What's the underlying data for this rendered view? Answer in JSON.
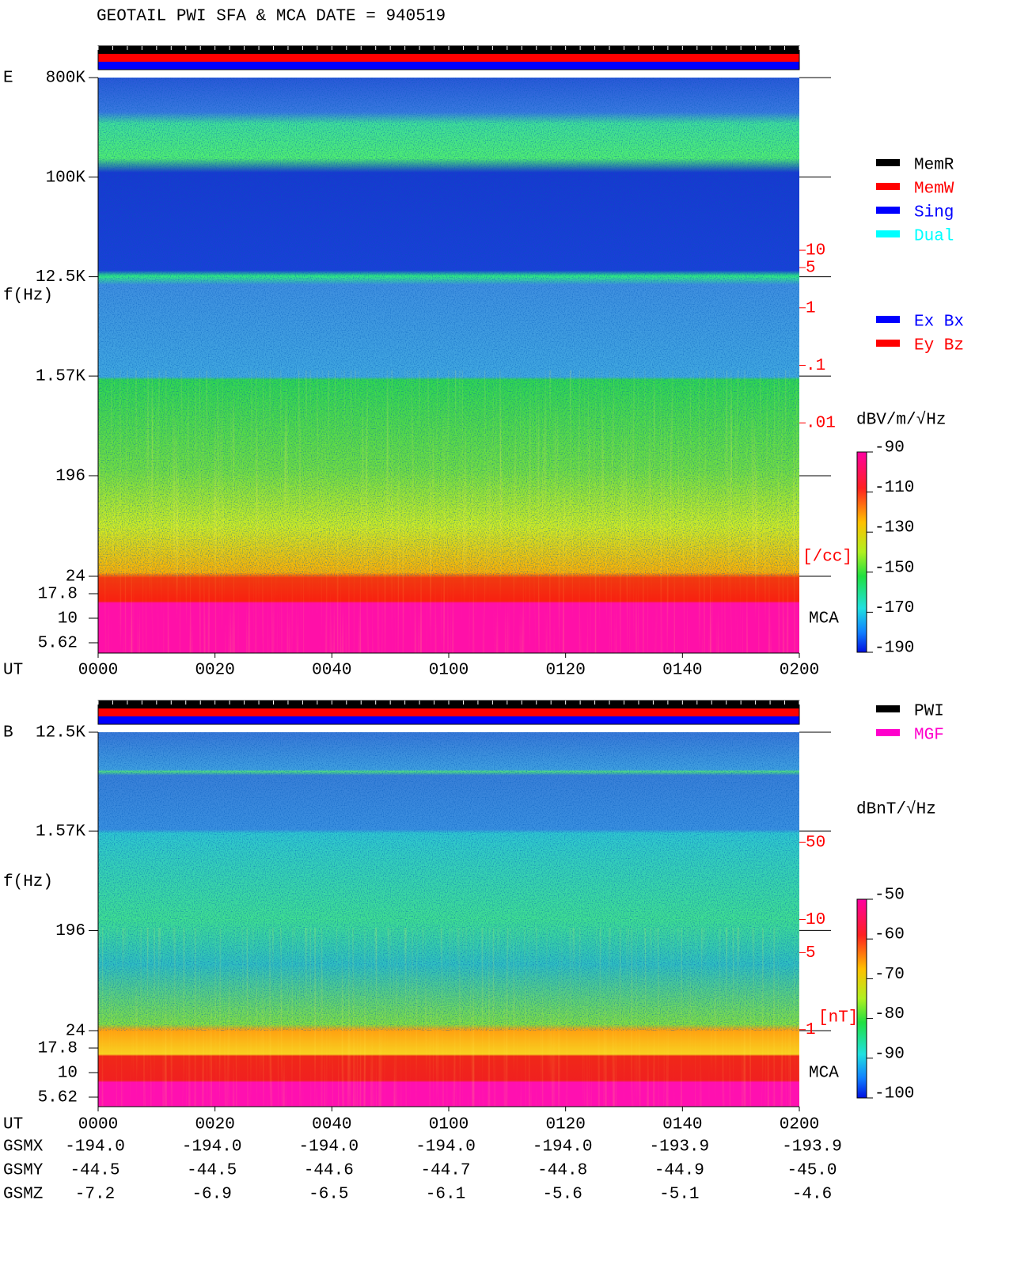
{
  "title": "GEOTAIL  PWI SFA & MCA   DATE = 940519",
  "chart_data": [
    {
      "type": "spectrogram",
      "component": "E",
      "y_label": "f(Hz)",
      "x_label": "UT",
      "xticks": [
        "0000",
        "0020",
        "0040",
        "0100",
        "0120",
        "0140",
        "0200"
      ],
      "ylim": [
        24,
        800000
      ],
      "yticks": [
        {
          "value": 800000,
          "label": "800K"
        },
        {
          "value": 100000,
          "label": "100K"
        },
        {
          "value": 12500,
          "label": "12.5K"
        },
        {
          "value": 1570,
          "label": "1.57K"
        },
        196,
        24
      ],
      "log_y": true,
      "mca_label": "MCA",
      "mca_yticks": [
        17.8,
        10,
        5.62
      ],
      "y2lim": [
        1e-06,
        10000
      ],
      "log_y2": true,
      "y2ticks": [
        10,
        5,
        1,
        {
          "value": 0.1,
          "label": ".1"
        },
        {
          "value": 0.01,
          "label": ".01"
        }
      ],
      "y2_label": "[/cc]",
      "colorbar_label": "dBV/m/√Hz",
      "clim": [
        -190,
        -90
      ],
      "cticks": [
        -90,
        -110,
        -130,
        -150,
        -170,
        -190
      ],
      "legend": [
        {
          "name": "MemR",
          "color": "#000000"
        },
        {
          "name": "MemW",
          "color": "#ff0000"
        },
        {
          "name": "Sing",
          "color": "#0000ff"
        },
        {
          "name": "Dual",
          "color": "#00ffff"
        }
      ],
      "legend2": [
        {
          "name": "Ex Bx",
          "color": "#0000ff"
        },
        {
          "name": "Ey Bz",
          "color": "#ff0000"
        }
      ]
    },
    {
      "type": "spectrogram",
      "component": "B",
      "y_label": "f(Hz)",
      "x_label": "UT",
      "xticks": [
        "0000",
        "0020",
        "0040",
        "0100",
        "0120",
        "0140",
        "0200"
      ],
      "ylim": [
        24,
        12500
      ],
      "yticks": [
        {
          "value": 12500,
          "label": "12.5K"
        },
        {
          "value": 1570,
          "label": "1.57K"
        },
        196,
        24
      ],
      "log_y": true,
      "mca_label": "MCA",
      "mca_yticks": [
        17.8,
        10,
        5.62
      ],
      "y2lim": [
        0.2,
        500
      ],
      "log_y2": true,
      "y2ticks": [
        50,
        10,
        5,
        1
      ],
      "y2_label": "[nT]",
      "colorbar_label": "dBnT/√Hz",
      "clim": [
        -100,
        -50
      ],
      "cticks": [
        -50,
        -60,
        -70,
        -80,
        -90,
        -100
      ],
      "legend": [
        {
          "name": "PWI",
          "color": "#000000"
        },
        {
          "name": "MGF",
          "color": "#ff00cc"
        }
      ]
    }
  ],
  "orbit": [
    {
      "name": "GSMX",
      "values": [
        "-194.0",
        "-194.0",
        "-194.0",
        "-194.0",
        "-194.0",
        "-193.9",
        "-193.9"
      ]
    },
    {
      "name": "GSMY",
      "values": [
        "-44.5",
        "-44.5",
        "-44.6",
        "-44.7",
        "-44.8",
        "-44.9",
        "-45.0"
      ]
    },
    {
      "name": "GSMZ",
      "values": [
        "-7.2",
        "-6.9",
        "-6.5",
        "-6.1",
        "-5.6",
        "-5.1",
        "-4.6"
      ]
    }
  ]
}
